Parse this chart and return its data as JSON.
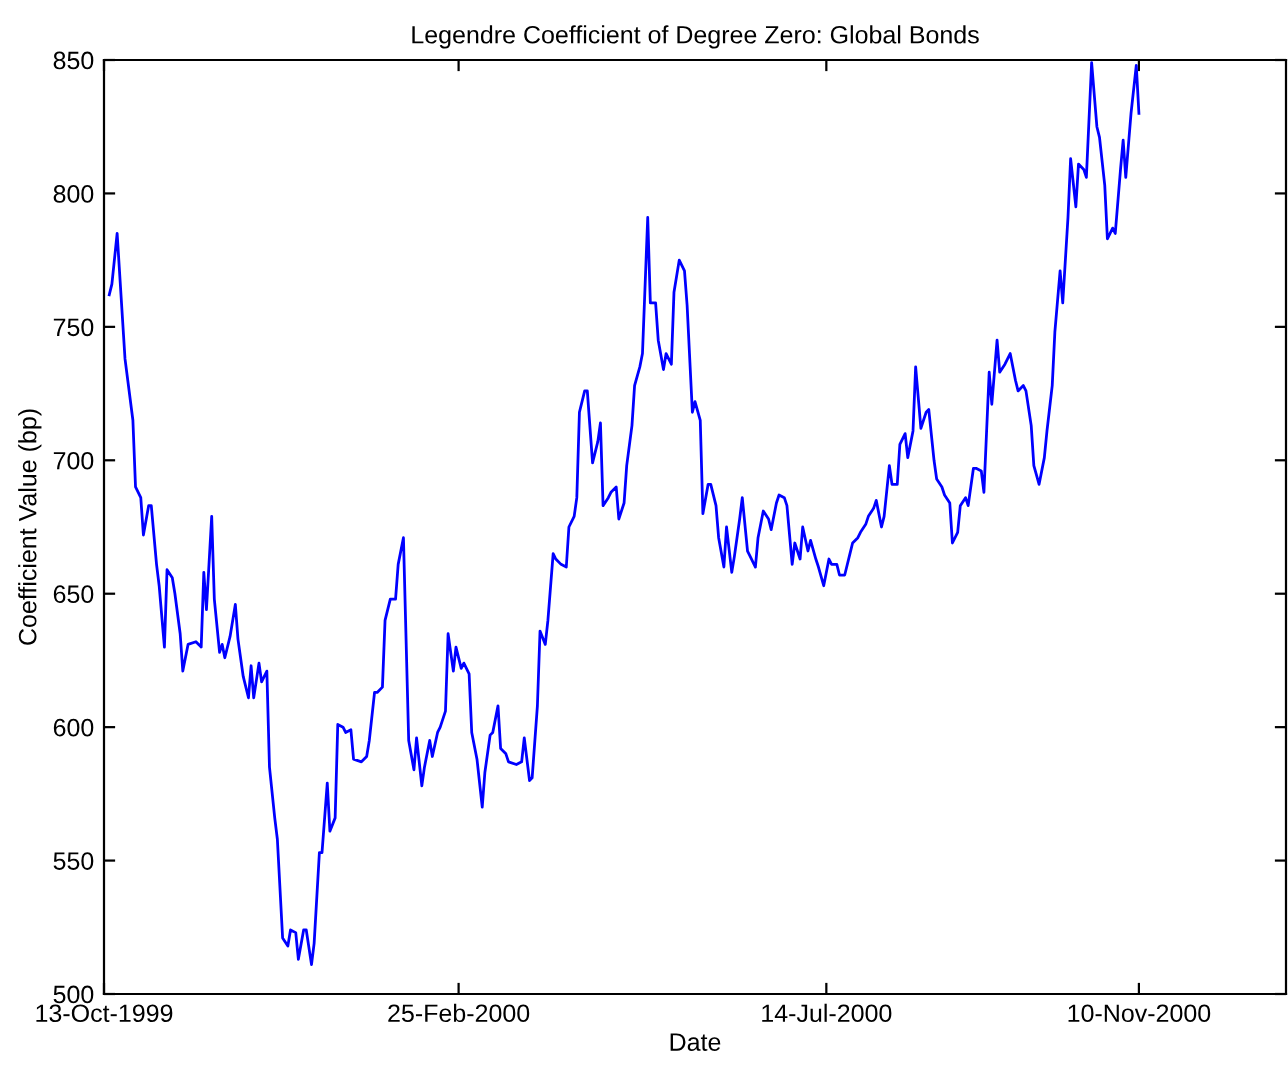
{
  "chart_data": {
    "type": "line",
    "title": "Legendre Coefficient of Degree Zero: Global Bonds",
    "xlabel": "Date",
    "ylabel": "Coefficient Value (bp)",
    "x": [
      "1999-10-15",
      "1999-10-16",
      "1999-10-18",
      "1999-10-21",
      "1999-10-24",
      "1999-10-25",
      "1999-10-27",
      "1999-10-28",
      "1999-10-30",
      "1999-10-31",
      "1999-11-02",
      "1999-11-03",
      "1999-11-05",
      "1999-11-06",
      "1999-11-08",
      "1999-11-09",
      "1999-11-11",
      "1999-11-12",
      "1999-11-14",
      "1999-11-17",
      "1999-11-19",
      "1999-11-20",
      "1999-11-21",
      "1999-11-23",
      "1999-11-24",
      "1999-11-26",
      "1999-11-27",
      "1999-11-28",
      "1999-11-30",
      "1999-12-02",
      "1999-12-03",
      "1999-12-05",
      "1999-12-07",
      "1999-12-08",
      "1999-12-09",
      "1999-12-11",
      "1999-12-12",
      "1999-12-14",
      "1999-12-15",
      "1999-12-17",
      "1999-12-18",
      "1999-12-20",
      "1999-12-22",
      "1999-12-23",
      "1999-12-25",
      "1999-12-26",
      "1999-12-28",
      "1999-12-29",
      "1999-12-31",
      "2000-01-01",
      "2000-01-03",
      "2000-01-04",
      "2000-01-06",
      "2000-01-07",
      "2000-01-09",
      "2000-01-10",
      "2000-01-12",
      "2000-01-13",
      "2000-01-15",
      "2000-01-16",
      "2000-01-19",
      "2000-01-21",
      "2000-01-22",
      "2000-01-24",
      "2000-01-25",
      "2000-01-27",
      "2000-01-28",
      "2000-01-30",
      "2000-02-01",
      "2000-02-02",
      "2000-02-04",
      "2000-02-06",
      "2000-02-08",
      "2000-02-09",
      "2000-02-11",
      "2000-02-12",
      "2000-02-14",
      "2000-02-15",
      "2000-02-17",
      "2000-02-18",
      "2000-02-20",
      "2000-02-21",
      "2000-02-23",
      "2000-02-24",
      "2000-02-26",
      "2000-02-27",
      "2000-02-29",
      "2000-03-01",
      "2000-03-03",
      "2000-03-05",
      "2000-03-06",
      "2000-03-08",
      "2000-03-09",
      "2000-03-11",
      "2000-03-12",
      "2000-03-14",
      "2000-03-15",
      "2000-03-18",
      "2000-03-20",
      "2000-03-21",
      "2000-03-23",
      "2000-03-24",
      "2000-03-26",
      "2000-03-27",
      "2000-03-29",
      "2000-03-30",
      "2000-04-01",
      "2000-04-02",
      "2000-04-04",
      "2000-04-06",
      "2000-04-07",
      "2000-04-09",
      "2000-04-10",
      "2000-04-11",
      "2000-04-13",
      "2000-04-14",
      "2000-04-16",
      "2000-04-18",
      "2000-04-19",
      "2000-04-20",
      "2000-04-22",
      "2000-04-23",
      "2000-04-25",
      "2000-04-26",
      "2000-04-28",
      "2000-04-29",
      "2000-05-01",
      "2000-05-02",
      "2000-05-04",
      "2000-05-05",
      "2000-05-07",
      "2000-05-08",
      "2000-05-10",
      "2000-05-11",
      "2000-05-13",
      "2000-05-14",
      "2000-05-16",
      "2000-05-17",
      "2000-05-19",
      "2000-05-21",
      "2000-05-22",
      "2000-05-24",
      "2000-05-25",
      "2000-05-27",
      "2000-05-28",
      "2000-05-30",
      "2000-05-31",
      "2000-06-02",
      "2000-06-03",
      "2000-06-05",
      "2000-06-06",
      "2000-06-08",
      "2000-06-09",
      "2000-06-11",
      "2000-06-12",
      "2000-06-14",
      "2000-06-15",
      "2000-06-17",
      "2000-06-18",
      "2000-06-20",
      "2000-06-22",
      "2000-06-23",
      "2000-06-25",
      "2000-06-26",
      "2000-06-28",
      "2000-06-29",
      "2000-07-01",
      "2000-07-02",
      "2000-07-04",
      "2000-07-05",
      "2000-07-07",
      "2000-07-08",
      "2000-07-10",
      "2000-07-11",
      "2000-07-13",
      "2000-07-15",
      "2000-07-16",
      "2000-07-18",
      "2000-07-19",
      "2000-07-21",
      "2000-07-23",
      "2000-07-24",
      "2000-07-26",
      "2000-07-27",
      "2000-07-29",
      "2000-07-30",
      "2000-08-01",
      "2000-08-02",
      "2000-08-04",
      "2000-08-05",
      "2000-08-07",
      "2000-08-08",
      "2000-08-10",
      "2000-08-11",
      "2000-08-13",
      "2000-08-14",
      "2000-08-16",
      "2000-08-17",
      "2000-08-19",
      "2000-08-21",
      "2000-08-22",
      "2000-08-24",
      "2000-08-25",
      "2000-08-27",
      "2000-08-28",
      "2000-08-30",
      "2000-08-31",
      "2000-09-02",
      "2000-09-03",
      "2000-09-05",
      "2000-09-06",
      "2000-09-08",
      "2000-09-09",
      "2000-09-11",
      "2000-09-12",
      "2000-09-14",
      "2000-09-15",
      "2000-09-17",
      "2000-09-18",
      "2000-09-20",
      "2000-09-22",
      "2000-09-24",
      "2000-09-25",
      "2000-09-27",
      "2000-09-28",
      "2000-09-30",
      "2000-10-01",
      "2000-10-03",
      "2000-10-05",
      "2000-10-06",
      "2000-10-08",
      "2000-10-09",
      "2000-10-11",
      "2000-10-12",
      "2000-10-14",
      "2000-10-15",
      "2000-10-17",
      "2000-10-18",
      "2000-10-20",
      "2000-10-21",
      "2000-10-23",
      "2000-10-25",
      "2000-10-26",
      "2000-10-28",
      "2000-10-29",
      "2000-10-31",
      "2000-11-01",
      "2000-11-03",
      "2000-11-04",
      "2000-11-05",
      "2000-11-07",
      "2000-11-09",
      "2000-11-10"
    ],
    "series": [
      {
        "color": "#0000ff",
        "values": [
          762,
          766,
          785,
          738,
          715,
          690,
          686,
          672,
          683,
          683,
          661,
          653,
          630,
          659,
          656,
          650,
          635,
          621,
          631,
          632,
          630,
          658,
          644,
          679,
          648,
          628,
          631,
          626,
          634,
          646,
          633,
          619,
          611,
          623,
          611,
          624,
          617,
          621,
          585,
          566,
          558,
          521,
          518,
          524,
          523,
          513,
          524,
          524,
          511,
          519,
          553,
          553,
          579,
          561,
          566,
          601,
          600,
          598,
          599,
          588,
          587,
          589,
          595,
          613,
          613,
          615,
          640,
          648,
          648,
          661,
          671,
          595,
          584,
          596,
          578,
          585,
          595,
          589,
          598,
          600,
          606,
          635,
          621,
          630,
          622,
          624,
          620,
          598,
          588,
          570,
          583,
          597,
          598,
          608,
          592,
          590,
          587,
          586,
          587,
          596,
          580,
          581,
          608,
          636,
          631,
          640,
          665,
          663,
          661,
          660,
          675,
          679,
          686,
          718,
          726,
          726,
          699,
          707,
          714,
          683,
          686,
          688,
          690,
          678,
          684,
          698,
          713,
          728,
          735,
          740,
          791,
          759,
          759,
          745,
          734,
          740,
          736,
          763,
          775,
          771,
          758,
          718,
          722,
          715,
          680,
          691,
          691,
          683,
          671,
          660,
          675,
          658,
          664,
          678,
          686,
          666,
          664,
          660,
          671,
          681,
          678,
          674,
          684,
          687,
          686,
          683,
          661,
          669,
          663,
          675,
          666,
          670,
          663,
          660,
          653,
          663,
          661,
          661,
          657,
          657,
          665,
          669,
          671,
          673,
          676,
          679,
          682,
          685,
          675,
          679,
          698,
          691,
          691,
          706,
          710,
          701,
          711,
          735,
          712,
          718,
          719,
          700,
          693,
          690,
          687,
          684,
          669,
          673,
          683,
          686,
          683,
          697,
          697,
          696,
          688,
          733,
          721,
          745,
          733,
          736,
          740,
          730,
          726,
          728,
          726,
          713,
          698,
          691,
          701,
          711,
          728,
          748,
          771,
          759,
          791,
          813,
          795,
          811,
          809,
          806,
          849,
          825,
          821,
          803,
          783,
          787,
          785,
          809,
          820,
          806,
          830,
          848,
          830
        ]
      }
    ],
    "xlim": [
      "1999-10-13",
      "2001-01-05"
    ],
    "xticks": [
      {
        "value": "1999-10-13",
        "label": "13-Oct-1999"
      },
      {
        "value": "2000-02-25",
        "label": "25-Feb-2000"
      },
      {
        "value": "2000-07-14",
        "label": "14-Jul-2000"
      },
      {
        "value": "2000-11-10",
        "label": "10-Nov-2000"
      }
    ],
    "ylim": [
      500,
      850
    ],
    "yticks": [
      500,
      550,
      600,
      650,
      700,
      750,
      800,
      850
    ],
    "grid": false,
    "legend": false,
    "marker": "none",
    "line_style": "solid"
  }
}
